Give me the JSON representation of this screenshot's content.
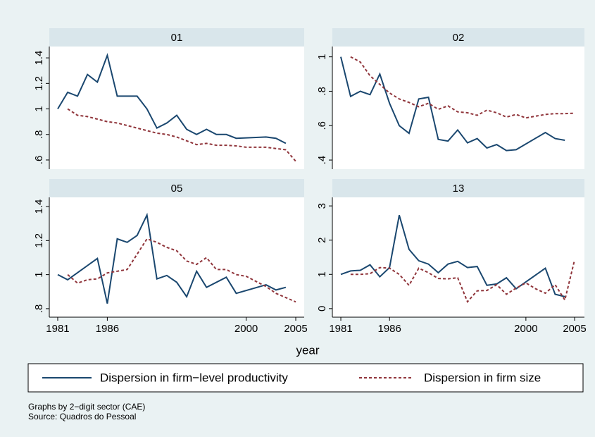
{
  "chart_data": [
    {
      "type": "line",
      "title": "01",
      "xlim": [
        1980.15,
        2005.85
      ],
      "ylim": [
        0.528,
        1.489
      ],
      "yticks": [
        {
          "value": 0.6,
          "label": ".6"
        },
        {
          "value": 0.8,
          "label": ".8"
        },
        1,
        1.2,
        1.4
      ],
      "grid": false,
      "series": [
        {
          "name": "Dispersion in firm−level productivity",
          "color": "#1a476f",
          "dash": false,
          "x": [
            1981,
            1982,
            1983,
            1984,
            1985,
            1986,
            1987,
            1988,
            1989,
            1990,
            1991,
            1992,
            1993,
            1994,
            1995,
            1996,
            1997,
            1998,
            1999,
            2002,
            2003,
            2004
          ],
          "values": [
            1.0,
            1.13,
            1.1,
            1.27,
            1.21,
            1.42,
            1.1,
            1.1,
            1.1,
            1.0,
            0.85,
            0.89,
            0.95,
            0.84,
            0.8,
            0.84,
            0.8,
            0.8,
            0.77,
            0.78,
            0.77,
            0.73
          ]
        },
        {
          "name": "Dispersion in firm size",
          "color": "#90353b",
          "dash": true,
          "x": [
            1982,
            1983,
            1984,
            1985,
            1986,
            1987,
            1988,
            1989,
            1990,
            1991,
            1992,
            1993,
            1994,
            1995,
            1996,
            1997,
            1998,
            1999,
            2000,
            2001,
            2002,
            2003,
            2004,
            2005
          ],
          "values": [
            1.0,
            0.95,
            0.94,
            0.92,
            0.9,
            0.89,
            0.87,
            0.85,
            0.83,
            0.81,
            0.8,
            0.78,
            0.75,
            0.72,
            0.73,
            0.715,
            0.715,
            0.71,
            0.7,
            0.7,
            0.7,
            0.69,
            0.68,
            0.59
          ]
        }
      ]
    },
    {
      "type": "line",
      "title": "02",
      "xlim": [
        1980.13,
        2006.01
      ],
      "ylim": [
        0.347,
        1.06
      ],
      "yticks": [
        {
          "value": 0.4,
          "label": ".4"
        },
        {
          "value": 0.6,
          "label": ".6"
        },
        {
          "value": 0.8,
          "label": ".8"
        },
        1
      ],
      "grid": false,
      "series": [
        {
          "name": "Dispersion in firm−level productivity",
          "color": "#1a476f",
          "dash": false,
          "x": [
            1981,
            1982,
            1983,
            1984,
            1985,
            1986,
            1987,
            1988,
            1989,
            1990,
            1991,
            1992,
            1993,
            1994,
            1995,
            1996,
            1997,
            1998,
            1999,
            2002,
            2003,
            2004
          ],
          "values": [
            1.0,
            0.77,
            0.8,
            0.78,
            0.9,
            0.73,
            0.6,
            0.555,
            0.755,
            0.765,
            0.52,
            0.51,
            0.575,
            0.5,
            0.525,
            0.47,
            0.49,
            0.455,
            0.46,
            0.56,
            0.525,
            0.515
          ]
        },
        {
          "name": "Dispersion in firm size",
          "color": "#90353b",
          "dash": true,
          "x": [
            1982,
            1983,
            1984,
            1985,
            1986,
            1987,
            1988,
            1989,
            1990,
            1991,
            1992,
            1993,
            1994,
            1995,
            1996,
            1997,
            1998,
            1999,
            2000,
            2001,
            2002,
            2003,
            2004,
            2005
          ],
          "values": [
            1.0,
            0.97,
            0.89,
            0.84,
            0.79,
            0.755,
            0.735,
            0.71,
            0.73,
            0.695,
            0.715,
            0.68,
            0.675,
            0.66,
            0.69,
            0.675,
            0.65,
            0.665,
            0.645,
            0.655,
            0.665,
            0.67,
            0.67,
            0.672
          ]
        }
      ]
    },
    {
      "type": "line",
      "title": "05",
      "xlim": [
        1980.15,
        2005.85
      ],
      "ylim": [
        0.75,
        1.454
      ],
      "xticks": [
        1981,
        1986,
        2000,
        2005
      ],
      "yticks": [
        {
          "value": 0.8,
          "label": ".8"
        },
        1,
        1.2,
        1.4
      ],
      "grid": false,
      "series": [
        {
          "name": "Dispersion in firm−level productivity",
          "color": "#1a476f",
          "dash": false,
          "x": [
            1981,
            1982,
            1985,
            1986,
            1987,
            1988,
            1989,
            1990,
            1991,
            1992,
            1993,
            1994,
            1995,
            1996,
            1998,
            1999,
            2002,
            2003,
            2004
          ],
          "values": [
            1.0,
            0.97,
            1.095,
            0.83,
            1.21,
            1.19,
            1.23,
            1.35,
            0.975,
            0.995,
            0.955,
            0.87,
            1.02,
            0.925,
            0.985,
            0.89,
            0.94,
            0.91,
            0.925
          ]
        },
        {
          "name": "Dispersion in firm size",
          "color": "#90353b",
          "dash": true,
          "x": [
            1982,
            1983,
            1984,
            1985,
            1986,
            1987,
            1988,
            1989,
            1990,
            1991,
            1992,
            1993,
            1994,
            1995,
            1996,
            1997,
            1998,
            1999,
            2000,
            2001,
            2002,
            2003,
            2004,
            2005
          ],
          "values": [
            1.0,
            0.95,
            0.97,
            0.975,
            1.01,
            1.02,
            1.03,
            1.12,
            1.21,
            1.19,
            1.16,
            1.14,
            1.08,
            1.06,
            1.1,
            1.03,
            1.03,
            1.0,
            0.99,
            0.96,
            0.93,
            0.89,
            0.865,
            0.84
          ]
        }
      ]
    },
    {
      "type": "line",
      "title": "13",
      "xlim": [
        1980.13,
        2006.01
      ],
      "ylim": [
        -0.25,
        3.25
      ],
      "xticks": [
        1981,
        1986,
        2000,
        2005
      ],
      "yticks": [
        0,
        1,
        2,
        3
      ],
      "grid": false,
      "series": [
        {
          "name": "Dispersion in firm−level productivity",
          "color": "#1a476f",
          "dash": false,
          "x": [
            1981,
            1982,
            1983,
            1984,
            1985,
            1986,
            1987,
            1988,
            1989,
            1990,
            1991,
            1992,
            1993,
            1994,
            1995,
            1996,
            1997,
            1998,
            1999,
            2002,
            2003,
            2004
          ],
          "values": [
            1.0,
            1.1,
            1.12,
            1.28,
            0.93,
            1.2,
            2.73,
            1.73,
            1.4,
            1.3,
            1.05,
            1.3,
            1.38,
            1.2,
            1.23,
            0.68,
            0.72,
            0.9,
            0.58,
            1.18,
            0.42,
            0.35
          ]
        },
        {
          "name": "Dispersion in firm size",
          "color": "#90353b",
          "dash": true,
          "x": [
            1982,
            1983,
            1984,
            1985,
            1986,
            1987,
            1988,
            1989,
            1990,
            1991,
            1992,
            1993,
            1994,
            1995,
            1996,
            1997,
            1998,
            1999,
            2000,
            2001,
            2002,
            2003,
            2004,
            2005
          ],
          "values": [
            1.0,
            1.0,
            1.02,
            1.2,
            1.18,
            1.0,
            0.68,
            1.18,
            1.05,
            0.88,
            0.87,
            0.9,
            0.2,
            0.52,
            0.53,
            0.7,
            0.42,
            0.6,
            0.75,
            0.58,
            0.45,
            0.7,
            0.25,
            1.42
          ]
        }
      ]
    }
  ],
  "xlabel": "year",
  "notes": [
    "Graphs by 2−digit sector (CAE)",
    "Source: Quadros do Pessoal"
  ]
}
